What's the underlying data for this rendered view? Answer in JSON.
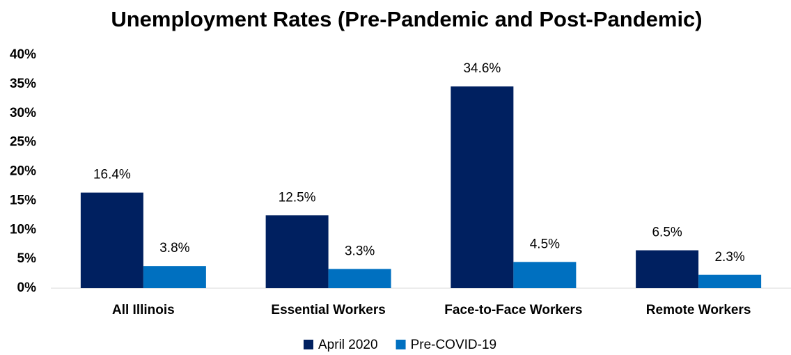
{
  "chart_data": {
    "type": "bar",
    "title": "Unemployment Rates (Pre-Pandemic and Post-Pandemic)",
    "categories": [
      "All Illinois",
      "Essential Workers",
      "Face-to-Face Workers",
      "Remote Workers"
    ],
    "series": [
      {
        "name": "April 2020",
        "color": "#002060",
        "values": [
          16.4,
          12.5,
          34.6,
          6.5
        ],
        "value_labels": [
          "16.4%",
          "12.5%",
          "34.6%",
          "6.5%"
        ]
      },
      {
        "name": "Pre-COVID-19",
        "color": "#0070c0",
        "values": [
          3.8,
          3.3,
          4.5,
          2.3
        ],
        "value_labels": [
          "3.8%",
          "3.3%",
          "4.5%",
          "2.3%"
        ]
      }
    ],
    "ylim": [
      0,
      40
    ],
    "yticks": [
      {
        "value": 0,
        "label": "0%"
      },
      {
        "value": 5,
        "label": "5%"
      },
      {
        "value": 10,
        "label": "10%"
      },
      {
        "value": 15,
        "label": "15%"
      },
      {
        "value": 20,
        "label": "20%"
      },
      {
        "value": 25,
        "label": "25%"
      },
      {
        "value": 30,
        "label": "30%"
      },
      {
        "value": 35,
        "label": "35%"
      },
      {
        "value": 40,
        "label": "40%"
      }
    ],
    "legend": "bottom"
  }
}
